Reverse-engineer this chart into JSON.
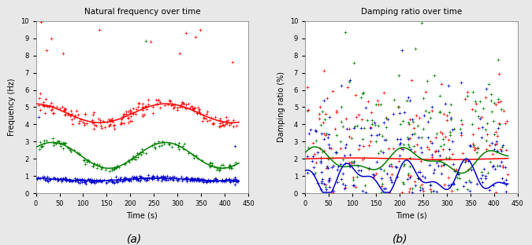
{
  "title_a": "Natural frequency over time",
  "title_b": "Damping ratio over time",
  "xlabel": "Time (s)",
  "ylabel_a": "Frequency (Hz)",
  "ylabel_b": "Damping ratio (%)",
  "label_a": "(a)",
  "label_b": "(b)",
  "xlim": [
    0,
    450
  ],
  "ylim_a": [
    0,
    10
  ],
  "ylim_b": [
    0,
    10
  ],
  "xticks": [
    0,
    50,
    100,
    150,
    200,
    250,
    300,
    350,
    400,
    450
  ],
  "yticks_a": [
    0,
    1,
    2,
    3,
    4,
    5,
    6,
    7,
    8,
    9,
    10
  ],
  "yticks_b": [
    0,
    1,
    2,
    3,
    4,
    5,
    6,
    7,
    8,
    9,
    10
  ],
  "colors": {
    "red": "#ff0000",
    "green": "#008000",
    "blue": "#0000cc"
  },
  "fig_bg": "#e8e8e8",
  "ax_bg": "#ffffff",
  "seed": 7
}
